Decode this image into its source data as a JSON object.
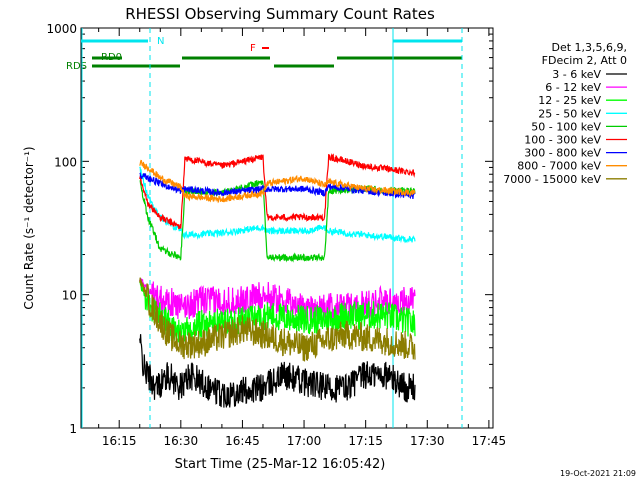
{
  "chart_data": {
    "type": "line",
    "title": "RHESSI Observing Summary Count Rates",
    "xlabel": "Start Time (25-Mar-12 16:05:42)",
    "ylabel": "Count Rate (s⁻¹ detector⁻¹)",
    "yscale": "log",
    "ylim": [
      1,
      1000
    ],
    "xlim": [
      "16:05:42",
      "17:46:00"
    ],
    "x_ticks": [
      "16:15",
      "16:30",
      "16:45",
      "17:00",
      "17:15",
      "17:30",
      "17:45"
    ],
    "y_ticks": [
      "1",
      "10",
      "100",
      "1000"
    ],
    "legend_position": "right",
    "legend_header": [
      "Det 1,3,5,6,9,",
      "FDecim 2, Att 0"
    ],
    "timestamp": "19-Oct-2021 21:09",
    "flags": [
      {
        "label": "N",
        "color": "#00e5ee"
      },
      {
        "label": "RD0",
        "color": "#008000"
      },
      {
        "label": "RDS",
        "color": "#008000"
      },
      {
        "label": "F",
        "color": "#ff0000"
      }
    ],
    "series": [
      {
        "name": "3 - 6 keV",
        "color": "#000000",
        "x": [
          "16:20",
          "16:21",
          "16:24",
          "16:27",
          "16:30",
          "16:32",
          "16:40",
          "16:50",
          "16:55",
          "17:05",
          "17:10",
          "17:15",
          "17:20",
          "17:25",
          "17:27"
        ],
        "values": [
          4.5,
          2.8,
          2.0,
          2.5,
          2.0,
          2.5,
          1.8,
          2.0,
          2.5,
          2.0,
          2.0,
          2.5,
          2.5,
          2.0,
          2.0
        ]
      },
      {
        "name": "6 - 12 keV",
        "color": "#ff00ff",
        "x": [
          "16:20",
          "16:23",
          "16:27",
          "16:30",
          "16:35",
          "16:45",
          "16:50",
          "17:00",
          "17:05",
          "17:10",
          "17:20",
          "17:27"
        ],
        "values": [
          13,
          10,
          9,
          8,
          9,
          9,
          10,
          8,
          8,
          8,
          9,
          9
        ]
      },
      {
        "name": "12 - 25 keV",
        "color": "#00ff00",
        "x": [
          "16:20",
          "16:23",
          "16:27",
          "16:30",
          "16:35",
          "16:45",
          "16:50",
          "17:00",
          "17:05",
          "17:10",
          "17:20",
          "17:27"
        ],
        "values": [
          12,
          8,
          6,
          5,
          6,
          6.5,
          7,
          6.5,
          6.5,
          7,
          7,
          6
        ]
      },
      {
        "name": "25 - 50 keV",
        "color": "#00ffff",
        "x": [
          "16:20",
          "16:22",
          "16:25",
          "16:30",
          "16:31",
          "16:40",
          "16:50",
          "16:51",
          "17:00",
          "17:05",
          "17:06",
          "17:15",
          "17:27"
        ],
        "values": [
          90,
          55,
          38,
          30,
          28,
          29,
          32,
          30,
          30,
          32,
          30,
          28,
          26
        ]
      },
      {
        "name": "50 - 100 keV",
        "color": "#00cc00",
        "x": [
          "16:20",
          "16:22",
          "16:25",
          "16:30",
          "16:31",
          "16:40",
          "16:50",
          "16:51",
          "17:00",
          "17:05",
          "17:06",
          "17:15",
          "17:27"
        ],
        "values": [
          70,
          38,
          22,
          19,
          60,
          58,
          70,
          19,
          19,
          19,
          60,
          62,
          60
        ]
      },
      {
        "name": "100 - 300 keV",
        "color": "#ff0000",
        "x": [
          "16:20",
          "16:22",
          "16:25",
          "16:30",
          "16:31",
          "16:40",
          "16:50",
          "16:51",
          "17:00",
          "17:05",
          "17:06",
          "17:15",
          "17:27"
        ],
        "values": [
          75,
          48,
          38,
          32,
          105,
          92,
          108,
          38,
          38,
          38,
          108,
          92,
          82
        ]
      },
      {
        "name": "300 - 800 keV",
        "color": "#0000ff",
        "x": [
          "16:20",
          "16:22",
          "16:25",
          "16:30",
          "16:31",
          "16:40",
          "16:50",
          "16:51",
          "17:00",
          "17:05",
          "17:06",
          "17:15",
          "17:27"
        ],
        "values": [
          80,
          75,
          68,
          60,
          62,
          58,
          62,
          62,
          62,
          58,
          65,
          60,
          55
        ]
      },
      {
        "name": "800 - 7000 keV",
        "color": "#ff8c00",
        "x": [
          "16:20",
          "16:22",
          "16:25",
          "16:30",
          "16:31",
          "16:40",
          "16:50",
          "16:51",
          "17:00",
          "17:05",
          "17:06",
          "17:15",
          "17:27"
        ],
        "values": [
          98,
          90,
          75,
          64,
          55,
          52,
          58,
          68,
          75,
          66,
          70,
          62,
          58
        ]
      },
      {
        "name": "7000 - 15000 keV",
        "color": "#8b7d00",
        "x": [
          "16:20",
          "16:23",
          "16:27",
          "16:30",
          "16:35",
          "16:45",
          "16:50",
          "17:00",
          "17:05",
          "17:10",
          "17:20",
          "17:27"
        ],
        "values": [
          13,
          8,
          5,
          4.2,
          4.3,
          5.5,
          5.0,
          4.0,
          4.5,
          5.0,
          4.5,
          4.0
        ]
      }
    ]
  }
}
